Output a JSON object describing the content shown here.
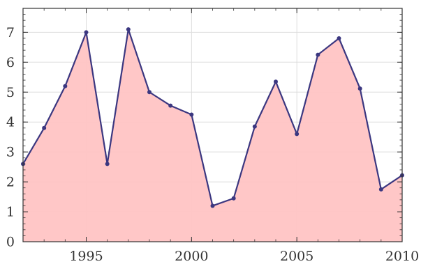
{
  "chart_data": {
    "type": "area",
    "title": "",
    "xlabel": "",
    "ylabel": "",
    "x": [
      1992,
      1993,
      1994,
      1995,
      1996,
      1997,
      1998,
      1999,
      2000,
      2001,
      2002,
      2003,
      2004,
      2005,
      2006,
      2007,
      2008,
      2009,
      2010
    ],
    "series": [
      {
        "values": [
          2.6,
          3.8,
          5.2,
          7.0,
          2.6,
          7.1,
          5.0,
          4.55,
          4.25,
          1.2,
          1.45,
          3.85,
          5.35,
          3.6,
          6.25,
          6.8,
          5.12,
          1.75,
          2.22
        ]
      }
    ],
    "xlim": [
      1992,
      2010
    ],
    "ylim": [
      0,
      7.8
    ],
    "xticks": [
      "1995",
      "2000",
      "2005",
      "2010"
    ],
    "yticks": [
      "0",
      "1",
      "2",
      "3",
      "4",
      "5",
      "6",
      "7"
    ],
    "grid": true,
    "colors": {
      "fill": "#ffc4c4",
      "line": "#3b3780",
      "marker": "#3b3780",
      "grid": "#dddddd",
      "frame": "#333333"
    }
  }
}
